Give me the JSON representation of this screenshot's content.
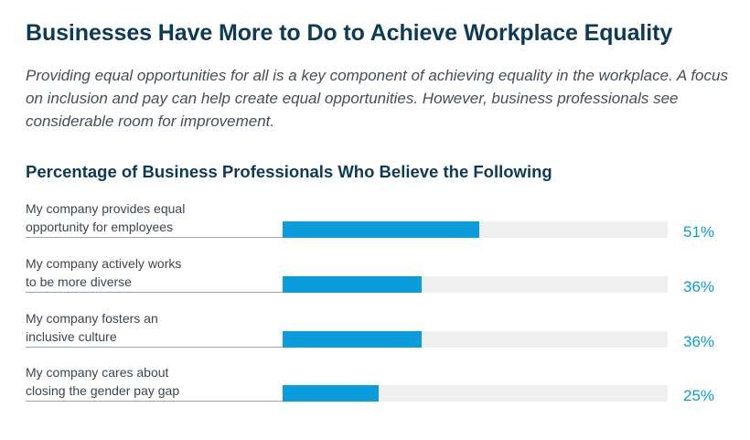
{
  "title": "Businesses Have More to Do to Achieve Workplace Equality",
  "intro": "Providing equal opportunities for all is a key component of achieving equality in the workplace. A focus on inclusion and pay can help create equal opportunities. However, business professionals see considerable room for improvement.",
  "colors": {
    "title": "#0d3a57",
    "bar": "#0b9cdb",
    "track": "#efefef"
  },
  "chart_data": {
    "type": "bar",
    "orientation": "horizontal",
    "title": "Percentage of Business Professionals Who Believe the Following",
    "categories": [
      "My company provides equal\nopportunity for employees",
      "My company actively works\nto be more diverse",
      "My company fosters an\ninclusive culture",
      "My company cares about\nclosing the gender pay gap"
    ],
    "values": [
      51,
      36,
      36,
      25
    ],
    "value_labels": [
      "51%",
      "36%",
      "36%",
      "25%"
    ],
    "xlim": [
      0,
      100
    ],
    "grid": false,
    "legend": "none"
  }
}
